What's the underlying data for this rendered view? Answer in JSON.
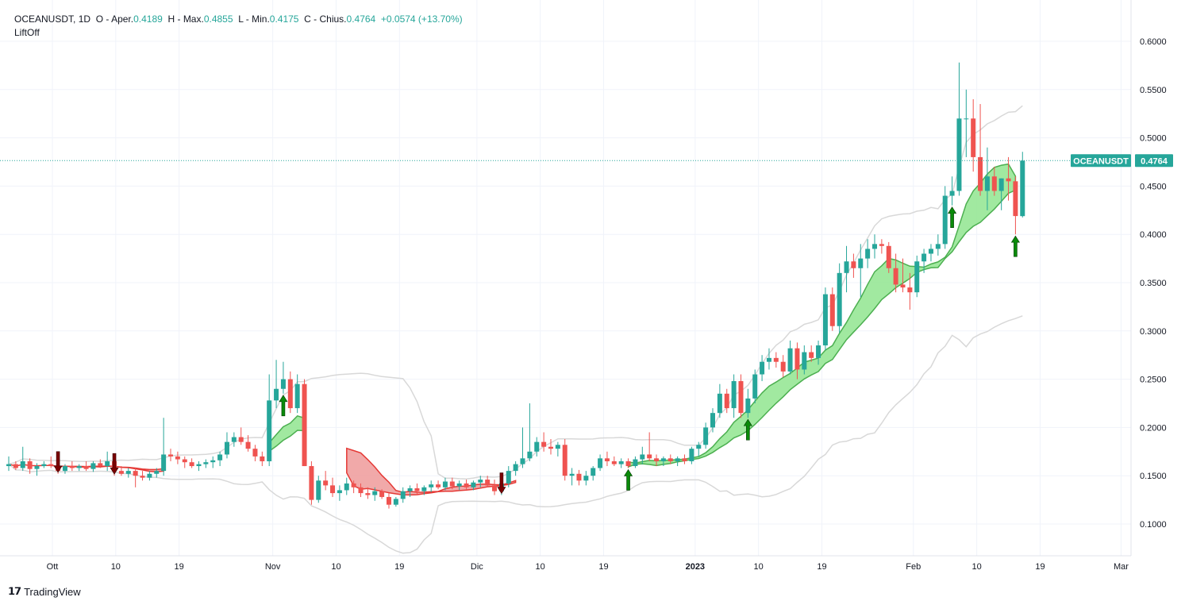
{
  "header": {
    "symbol": "OCEANUSDT",
    "interval": "1D",
    "open_label": "O",
    "open_text": "Aper.",
    "open": "0.4189",
    "high_label": "H",
    "high_text": "Max.",
    "high": "0.4855",
    "low_label": "L",
    "low_text": "Min.",
    "low": "0.4175",
    "close_label": "C",
    "close_text": "Chius.",
    "close": "0.4764",
    "change": "+0.0574 (+13.70%)"
  },
  "indicator_name": "LiftOff",
  "brand": "TradingView",
  "price_tag": {
    "symbol": "OCEANUSDT",
    "value": "0.4764"
  },
  "colors": {
    "up": "#26a69a",
    "down": "#ef5350",
    "band_up": "#90e58f",
    "band_down": "#ef9a9a",
    "arrow_up": "#0a8a0a",
    "arrow_down": "#7a0000"
  },
  "chart_data": {
    "type": "candlestick",
    "x_tick_labels": [
      "Ott",
      "10",
      "19",
      "Nov",
      "10",
      "19",
      "Dic",
      "10",
      "19",
      "2023",
      "10",
      "19",
      "Feb",
      "10",
      "19",
      "Mar"
    ],
    "y_tick_labels": [
      "0.6000",
      "0.5500",
      "0.5000",
      "0.4500",
      "0.4000",
      "0.3500",
      "0.3000",
      "0.2500",
      "0.2000",
      "0.1500",
      "0.1000"
    ],
    "ylim": [
      0.065,
      0.625
    ],
    "last_price": 0.4764,
    "candles_ohlc": [
      [
        0.16,
        0.17,
        0.155,
        0.162
      ],
      [
        0.162,
        0.165,
        0.156,
        0.158
      ],
      [
        0.158,
        0.18,
        0.155,
        0.165
      ],
      [
        0.165,
        0.168,
        0.152,
        0.157
      ],
      [
        0.157,
        0.163,
        0.15,
        0.16
      ],
      [
        0.16,
        0.165,
        0.158,
        0.162
      ],
      [
        0.162,
        0.17,
        0.158,
        0.16
      ],
      [
        0.16,
        0.168,
        0.152,
        0.155
      ],
      [
        0.155,
        0.162,
        0.152,
        0.16
      ],
      [
        0.16,
        0.165,
        0.155,
        0.158
      ],
      [
        0.158,
        0.162,
        0.155,
        0.16
      ],
      [
        0.16,
        0.165,
        0.155,
        0.157
      ],
      [
        0.157,
        0.165,
        0.154,
        0.163
      ],
      [
        0.163,
        0.167,
        0.158,
        0.16
      ],
      [
        0.16,
        0.175,
        0.155,
        0.165
      ],
      [
        0.165,
        0.168,
        0.15,
        0.155
      ],
      [
        0.155,
        0.16,
        0.15,
        0.152
      ],
      [
        0.152,
        0.158,
        0.148,
        0.155
      ],
      [
        0.155,
        0.158,
        0.138,
        0.15
      ],
      [
        0.15,
        0.155,
        0.145,
        0.148
      ],
      [
        0.148,
        0.155,
        0.145,
        0.152
      ],
      [
        0.152,
        0.158,
        0.148,
        0.155
      ],
      [
        0.155,
        0.21,
        0.15,
        0.172
      ],
      [
        0.172,
        0.178,
        0.165,
        0.17
      ],
      [
        0.17,
        0.175,
        0.162,
        0.167
      ],
      [
        0.167,
        0.17,
        0.158,
        0.164
      ],
      [
        0.164,
        0.168,
        0.158,
        0.16
      ],
      [
        0.16,
        0.165,
        0.155,
        0.162
      ],
      [
        0.162,
        0.167,
        0.158,
        0.164
      ],
      [
        0.164,
        0.17,
        0.158,
        0.166
      ],
      [
        0.166,
        0.175,
        0.16,
        0.172
      ],
      [
        0.172,
        0.195,
        0.168,
        0.185
      ],
      [
        0.185,
        0.195,
        0.18,
        0.19
      ],
      [
        0.19,
        0.2,
        0.182,
        0.185
      ],
      [
        0.185,
        0.192,
        0.175,
        0.178
      ],
      [
        0.178,
        0.182,
        0.165,
        0.17
      ],
      [
        0.17,
        0.175,
        0.16,
        0.165
      ],
      [
        0.165,
        0.255,
        0.16,
        0.228
      ],
      [
        0.228,
        0.27,
        0.22,
        0.24
      ],
      [
        0.24,
        0.268,
        0.235,
        0.25
      ],
      [
        0.25,
        0.258,
        0.215,
        0.22
      ],
      [
        0.22,
        0.255,
        0.215,
        0.245
      ],
      [
        0.245,
        0.25,
        0.16,
        0.16
      ],
      [
        0.16,
        0.165,
        0.12,
        0.125
      ],
      [
        0.125,
        0.15,
        0.122,
        0.145
      ],
      [
        0.145,
        0.155,
        0.135,
        0.14
      ],
      [
        0.14,
        0.148,
        0.128,
        0.132
      ],
      [
        0.132,
        0.14,
        0.124,
        0.135
      ],
      [
        0.135,
        0.148,
        0.13,
        0.142
      ],
      [
        0.142,
        0.145,
        0.132,
        0.138
      ],
      [
        0.138,
        0.142,
        0.128,
        0.132
      ],
      [
        0.132,
        0.138,
        0.126,
        0.13
      ],
      [
        0.13,
        0.138,
        0.124,
        0.134
      ],
      [
        0.134,
        0.136,
        0.126,
        0.128
      ],
      [
        0.128,
        0.132,
        0.116,
        0.12
      ],
      [
        0.12,
        0.128,
        0.118,
        0.126
      ],
      [
        0.126,
        0.138,
        0.122,
        0.134
      ],
      [
        0.134,
        0.14,
        0.128,
        0.137
      ],
      [
        0.137,
        0.142,
        0.13,
        0.134
      ],
      [
        0.134,
        0.14,
        0.13,
        0.138
      ],
      [
        0.138,
        0.145,
        0.133,
        0.141
      ],
      [
        0.141,
        0.145,
        0.136,
        0.138
      ],
      [
        0.138,
        0.148,
        0.135,
        0.144
      ],
      [
        0.144,
        0.148,
        0.136,
        0.139
      ],
      [
        0.139,
        0.145,
        0.135,
        0.142
      ],
      [
        0.142,
        0.146,
        0.136,
        0.138
      ],
      [
        0.138,
        0.145,
        0.135,
        0.143
      ],
      [
        0.143,
        0.15,
        0.138,
        0.146
      ],
      [
        0.146,
        0.15,
        0.138,
        0.14
      ],
      [
        0.14,
        0.146,
        0.13,
        0.134
      ],
      [
        0.134,
        0.145,
        0.13,
        0.142
      ],
      [
        0.142,
        0.16,
        0.138,
        0.155
      ],
      [
        0.155,
        0.165,
        0.15,
        0.162
      ],
      [
        0.162,
        0.2,
        0.158,
        0.168
      ],
      [
        0.168,
        0.225,
        0.165,
        0.175
      ],
      [
        0.175,
        0.19,
        0.17,
        0.185
      ],
      [
        0.185,
        0.195,
        0.175,
        0.18
      ],
      [
        0.18,
        0.188,
        0.172,
        0.178
      ],
      [
        0.178,
        0.185,
        0.17,
        0.182
      ],
      [
        0.182,
        0.188,
        0.145,
        0.15
      ],
      [
        0.15,
        0.158,
        0.14,
        0.152
      ],
      [
        0.152,
        0.156,
        0.14,
        0.145
      ],
      [
        0.145,
        0.155,
        0.14,
        0.15
      ],
      [
        0.15,
        0.16,
        0.145,
        0.158
      ],
      [
        0.158,
        0.172,
        0.155,
        0.168
      ],
      [
        0.168,
        0.175,
        0.16,
        0.165
      ],
      [
        0.165,
        0.17,
        0.16,
        0.162
      ],
      [
        0.162,
        0.168,
        0.158,
        0.165
      ],
      [
        0.165,
        0.168,
        0.158,
        0.16
      ],
      [
        0.16,
        0.17,
        0.158,
        0.167
      ],
      [
        0.167,
        0.18,
        0.162,
        0.172
      ],
      [
        0.172,
        0.195,
        0.165,
        0.168
      ],
      [
        0.168,
        0.172,
        0.16,
        0.165
      ],
      [
        0.165,
        0.17,
        0.16,
        0.168
      ],
      [
        0.168,
        0.172,
        0.162,
        0.165
      ],
      [
        0.165,
        0.17,
        0.16,
        0.168
      ],
      [
        0.168,
        0.172,
        0.162,
        0.165
      ],
      [
        0.165,
        0.18,
        0.162,
        0.178
      ],
      [
        0.178,
        0.185,
        0.17,
        0.182
      ],
      [
        0.182,
        0.205,
        0.178,
        0.2
      ],
      [
        0.2,
        0.22,
        0.195,
        0.215
      ],
      [
        0.215,
        0.245,
        0.21,
        0.235
      ],
      [
        0.235,
        0.24,
        0.215,
        0.22
      ],
      [
        0.22,
        0.255,
        0.21,
        0.248
      ],
      [
        0.248,
        0.255,
        0.21,
        0.215
      ],
      [
        0.215,
        0.24,
        0.21,
        0.23
      ],
      [
        0.23,
        0.26,
        0.225,
        0.255
      ],
      [
        0.255,
        0.275,
        0.248,
        0.268
      ],
      [
        0.268,
        0.282,
        0.26,
        0.272
      ],
      [
        0.272,
        0.278,
        0.262,
        0.268
      ],
      [
        0.268,
        0.275,
        0.252,
        0.258
      ],
      [
        0.258,
        0.29,
        0.255,
        0.282
      ],
      [
        0.282,
        0.288,
        0.25,
        0.26
      ],
      [
        0.26,
        0.285,
        0.255,
        0.278
      ],
      [
        0.278,
        0.285,
        0.268,
        0.272
      ],
      [
        0.272,
        0.29,
        0.265,
        0.285
      ],
      [
        0.285,
        0.345,
        0.28,
        0.338
      ],
      [
        0.338,
        0.345,
        0.3,
        0.305
      ],
      [
        0.305,
        0.37,
        0.298,
        0.36
      ],
      [
        0.36,
        0.388,
        0.34,
        0.372
      ],
      [
        0.372,
        0.38,
        0.355,
        0.365
      ],
      [
        0.365,
        0.39,
        0.335,
        0.375
      ],
      [
        0.375,
        0.395,
        0.365,
        0.385
      ],
      [
        0.385,
        0.4,
        0.375,
        0.39
      ],
      [
        0.39,
        0.395,
        0.38,
        0.388
      ],
      [
        0.388,
        0.392,
        0.36,
        0.365
      ],
      [
        0.365,
        0.38,
        0.34,
        0.348
      ],
      [
        0.348,
        0.375,
        0.34,
        0.345
      ],
      [
        0.345,
        0.36,
        0.322,
        0.34
      ],
      [
        0.34,
        0.378,
        0.335,
        0.372
      ],
      [
        0.372,
        0.385,
        0.36,
        0.38
      ],
      [
        0.38,
        0.39,
        0.372,
        0.385
      ],
      [
        0.385,
        0.4,
        0.378,
        0.39
      ],
      [
        0.39,
        0.45,
        0.385,
        0.44
      ],
      [
        0.44,
        0.46,
        0.43,
        0.445
      ],
      [
        0.445,
        0.578,
        0.44,
        0.52
      ],
      [
        0.52,
        0.55,
        0.48,
        0.52
      ],
      [
        0.52,
        0.54,
        0.465,
        0.48
      ],
      [
        0.48,
        0.535,
        0.44,
        0.445
      ],
      [
        0.445,
        0.49,
        0.425,
        0.46
      ],
      [
        0.46,
        0.47,
        0.44,
        0.445
      ],
      [
        0.445,
        0.458,
        0.425,
        0.458
      ],
      [
        0.458,
        0.48,
        0.435,
        0.455
      ],
      [
        0.455,
        0.46,
        0.4,
        0.419
      ],
      [
        0.4189,
        0.4855,
        0.4175,
        0.4764
      ]
    ]
  }
}
